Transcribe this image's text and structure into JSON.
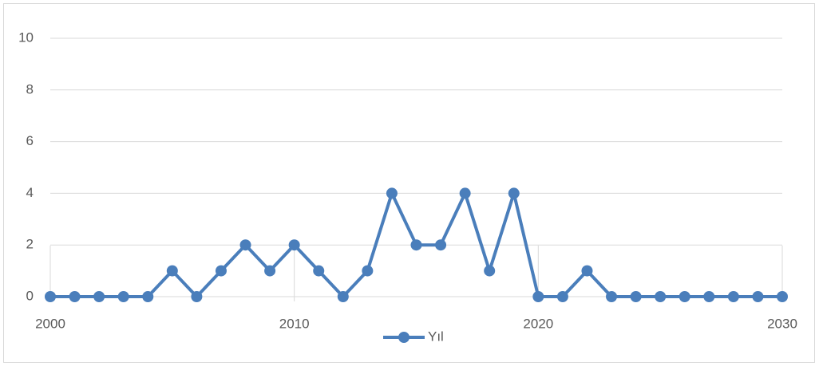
{
  "chart_data": {
    "type": "line",
    "x": [
      2000,
      2001,
      2002,
      2003,
      2004,
      2005,
      2006,
      2007,
      2008,
      2009,
      2010,
      2011,
      2012,
      2013,
      2014,
      2015,
      2016,
      2017,
      2018,
      2019,
      2020,
      2021,
      2022,
      2023,
      2024,
      2025,
      2026,
      2027,
      2028,
      2029,
      2030
    ],
    "series": [
      {
        "name": "Yıl",
        "color": "#4a7ebb",
        "values": [
          0,
          0,
          0,
          0,
          0,
          1,
          0,
          1,
          2,
          1,
          2,
          1,
          0,
          1,
          4,
          2,
          2,
          4,
          1,
          4,
          0,
          0,
          1,
          0,
          0,
          0,
          0,
          0,
          0,
          0,
          0
        ]
      }
    ],
    "xlim": [
      2000,
      2030
    ],
    "xticks": [
      2000,
      2010,
      2020,
      2030
    ],
    "ylim": [
      0,
      10
    ],
    "yticks": [
      0,
      2,
      4,
      6,
      8,
      10
    ],
    "grid": true,
    "legend": "bottom"
  }
}
